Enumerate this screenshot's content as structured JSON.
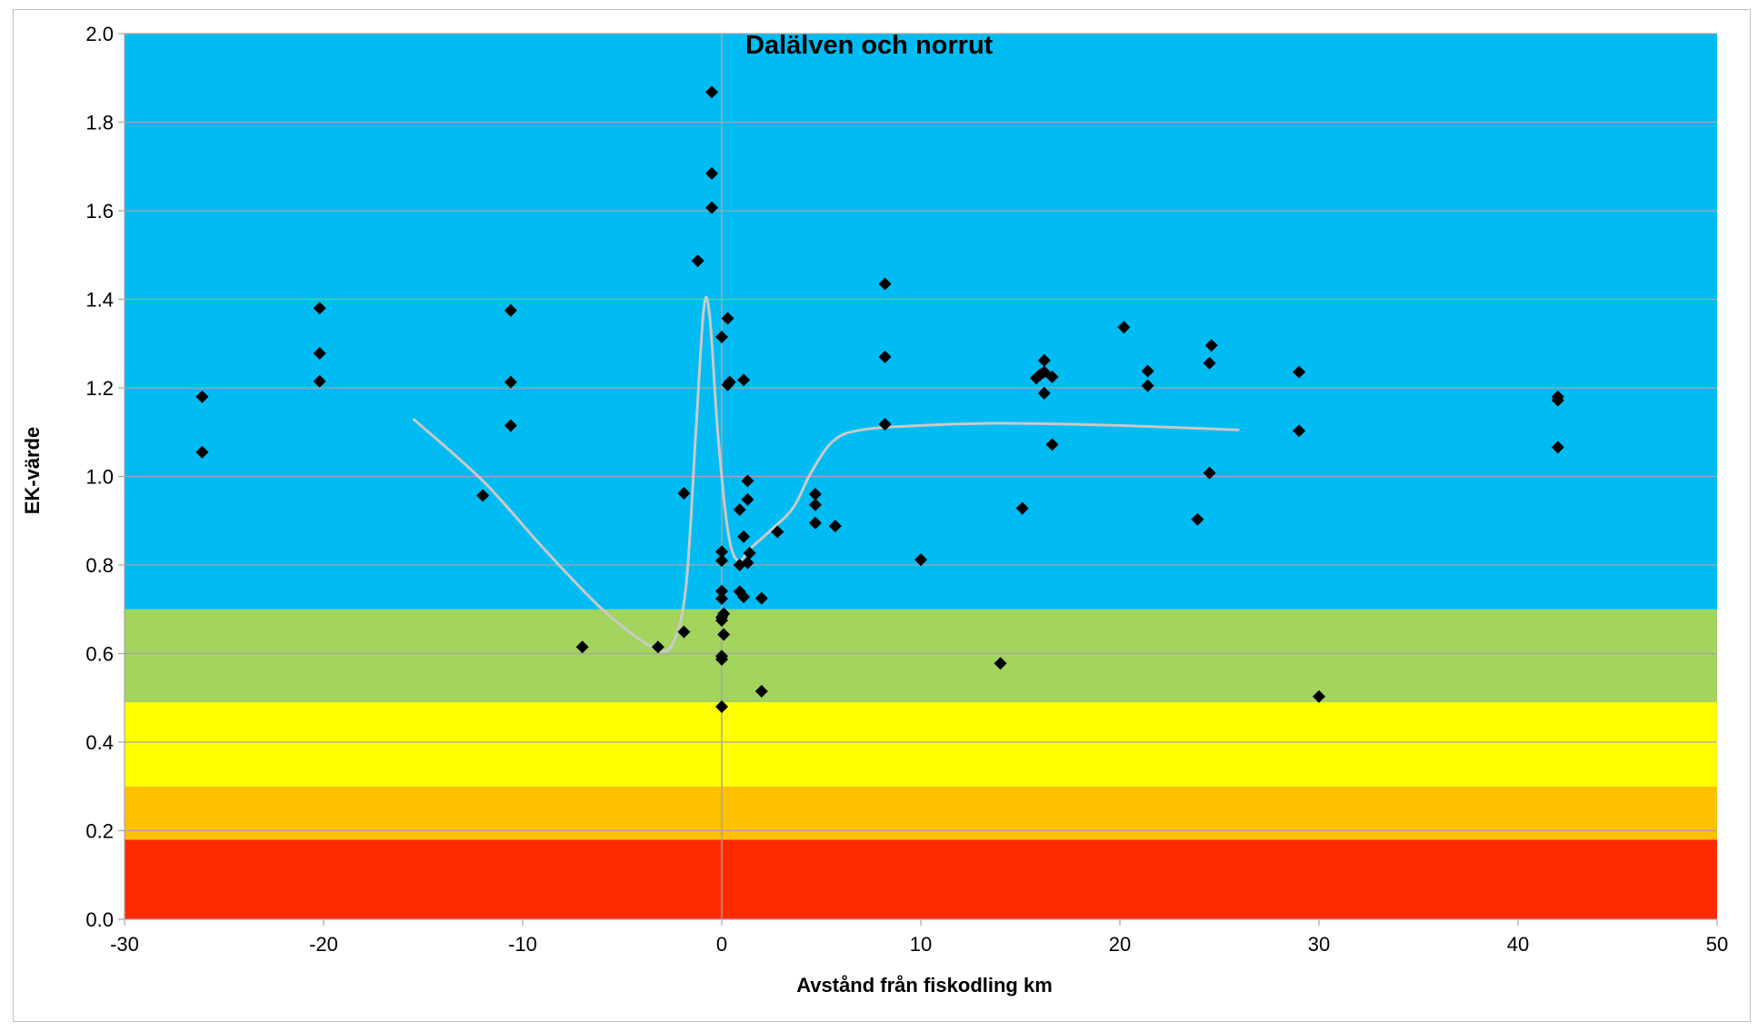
{
  "chart_data": {
    "type": "scatter",
    "title": "Dalälven  och norrut",
    "xlabel": "Avstånd från fiskodling km",
    "ylabel": "EK-värde",
    "xlim": [
      -30,
      50
    ],
    "ylim": [
      0,
      2.0
    ],
    "xticks": [
      "-30",
      "-20",
      "-10",
      "0",
      "10",
      "20",
      "30",
      "40",
      "50"
    ],
    "yticks": [
      "0.0",
      "0.2",
      "0.4",
      "0.6",
      "0.8",
      "1.0",
      "1.2",
      "1.4",
      "1.6",
      "1.8",
      "2.0"
    ],
    "grid": "horizontal",
    "vertical_reference_x": 0,
    "colors": {
      "high": "#00bcf2",
      "good": "#a2d45e",
      "moderate": "#ffff00",
      "poor": "#ffc000",
      "bad": "#ff2a00",
      "points": "#000000",
      "trend": "#c9c9c9",
      "grid": "#a6a6a6"
    },
    "bands": [
      {
        "from": 0.0,
        "to": 0.18,
        "color": "#ff2a00"
      },
      {
        "from": 0.18,
        "to": 0.3,
        "color": "#ffc000"
      },
      {
        "from": 0.3,
        "to": 0.49,
        "color": "#ffff00"
      },
      {
        "from": 0.49,
        "to": 0.7,
        "color": "#a2d45e"
      },
      {
        "from": 0.7,
        "to": 2.0,
        "color": "#00bcf2"
      }
    ],
    "points": [
      {
        "x": -26.1,
        "y": 1.18
      },
      {
        "x": -26.1,
        "y": 1.055
      },
      {
        "x": -20.2,
        "y": 1.38
      },
      {
        "x": -20.2,
        "y": 1.278
      },
      {
        "x": -20.2,
        "y": 1.215
      },
      {
        "x": -10.6,
        "y": 1.375
      },
      {
        "x": -10.6,
        "y": 1.213
      },
      {
        "x": -10.6,
        "y": 1.115
      },
      {
        "x": -12.0,
        "y": 0.957
      },
      {
        "x": -7.0,
        "y": 0.615
      },
      {
        "x": -3.2,
        "y": 0.615
      },
      {
        "x": -1.9,
        "y": 0.649
      },
      {
        "x": -1.9,
        "y": 0.962
      },
      {
        "x": -1.2,
        "y": 1.487
      },
      {
        "x": -0.5,
        "y": 1.868
      },
      {
        "x": -0.5,
        "y": 1.684
      },
      {
        "x": -0.5,
        "y": 1.607
      },
      {
        "x": 0.0,
        "y": 1.315
      },
      {
        "x": 0.3,
        "y": 1.357
      },
      {
        "x": 0.3,
        "y": 1.207
      },
      {
        "x": 0.4,
        "y": 1.213
      },
      {
        "x": 0.0,
        "y": 0.83
      },
      {
        "x": 0.0,
        "y": 0.81
      },
      {
        "x": 0.0,
        "y": 0.741
      },
      {
        "x": 0.0,
        "y": 0.724
      },
      {
        "x": 0.1,
        "y": 0.69
      },
      {
        "x": 0.0,
        "y": 0.682
      },
      {
        "x": 0.0,
        "y": 0.675
      },
      {
        "x": 0.1,
        "y": 0.643
      },
      {
        "x": 0.0,
        "y": 0.594
      },
      {
        "x": 0.0,
        "y": 0.587
      },
      {
        "x": 0.0,
        "y": 0.48
      },
      {
        "x": 0.9,
        "y": 0.925
      },
      {
        "x": 0.9,
        "y": 0.8
      },
      {
        "x": 0.9,
        "y": 0.74
      },
      {
        "x": 1.1,
        "y": 1.218
      },
      {
        "x": 1.1,
        "y": 0.864
      },
      {
        "x": 1.1,
        "y": 0.728
      },
      {
        "x": 1.3,
        "y": 0.99
      },
      {
        "x": 1.3,
        "y": 0.948
      },
      {
        "x": 1.4,
        "y": 0.827
      },
      {
        "x": 1.3,
        "y": 0.805
      },
      {
        "x": 2.0,
        "y": 0.725
      },
      {
        "x": 2.0,
        "y": 0.515
      },
      {
        "x": 2.8,
        "y": 0.875
      },
      {
        "x": 4.7,
        "y": 0.96
      },
      {
        "x": 4.7,
        "y": 0.936
      },
      {
        "x": 4.7,
        "y": 0.895
      },
      {
        "x": 5.7,
        "y": 0.888
      },
      {
        "x": 8.2,
        "y": 1.435
      },
      {
        "x": 8.2,
        "y": 1.27
      },
      {
        "x": 8.2,
        "y": 1.118
      },
      {
        "x": 10.0,
        "y": 0.812
      },
      {
        "x": 14.0,
        "y": 0.578
      },
      {
        "x": 15.1,
        "y": 0.928
      },
      {
        "x": 15.8,
        "y": 1.222
      },
      {
        "x": 16.0,
        "y": 1.23
      },
      {
        "x": 16.2,
        "y": 1.262
      },
      {
        "x": 16.2,
        "y": 1.236
      },
      {
        "x": 16.2,
        "y": 1.188
      },
      {
        "x": 16.6,
        "y": 1.225
      },
      {
        "x": 16.6,
        "y": 1.072
      },
      {
        "x": 20.2,
        "y": 1.337
      },
      {
        "x": 21.4,
        "y": 1.238
      },
      {
        "x": 21.4,
        "y": 1.205
      },
      {
        "x": 23.9,
        "y": 0.903
      },
      {
        "x": 24.5,
        "y": 1.256
      },
      {
        "x": 24.6,
        "y": 1.296
      },
      {
        "x": 24.5,
        "y": 1.008
      },
      {
        "x": 29.0,
        "y": 1.236
      },
      {
        "x": 29.0,
        "y": 1.103
      },
      {
        "x": 30.0,
        "y": 0.503
      },
      {
        "x": 42.0,
        "y": 1.18
      },
      {
        "x": 42.0,
        "y": 1.172
      },
      {
        "x": 42.0,
        "y": 1.066
      }
    ],
    "trend": [
      {
        "x": -15.5,
        "y": 1.13
      },
      {
        "x": -12.0,
        "y": 0.99
      },
      {
        "x": -9.0,
        "y": 0.84
      },
      {
        "x": -6.0,
        "y": 0.7
      },
      {
        "x": -3.5,
        "y": 0.615
      },
      {
        "x": -2.5,
        "y": 0.62
      },
      {
        "x": -1.8,
        "y": 0.75
      },
      {
        "x": -1.3,
        "y": 1.1
      },
      {
        "x": -0.9,
        "y": 1.38
      },
      {
        "x": -0.6,
        "y": 1.36
      },
      {
        "x": -0.2,
        "y": 1.1
      },
      {
        "x": 0.3,
        "y": 0.88
      },
      {
        "x": 0.8,
        "y": 0.81
      },
      {
        "x": 1.5,
        "y": 0.84
      },
      {
        "x": 2.5,
        "y": 0.88
      },
      {
        "x": 3.6,
        "y": 0.93
      },
      {
        "x": 4.5,
        "y": 1.01
      },
      {
        "x": 5.6,
        "y": 1.08
      },
      {
        "x": 7.0,
        "y": 1.105
      },
      {
        "x": 10.0,
        "y": 1.115
      },
      {
        "x": 14.0,
        "y": 1.12
      },
      {
        "x": 20.0,
        "y": 1.115
      },
      {
        "x": 26.0,
        "y": 1.105
      }
    ]
  }
}
